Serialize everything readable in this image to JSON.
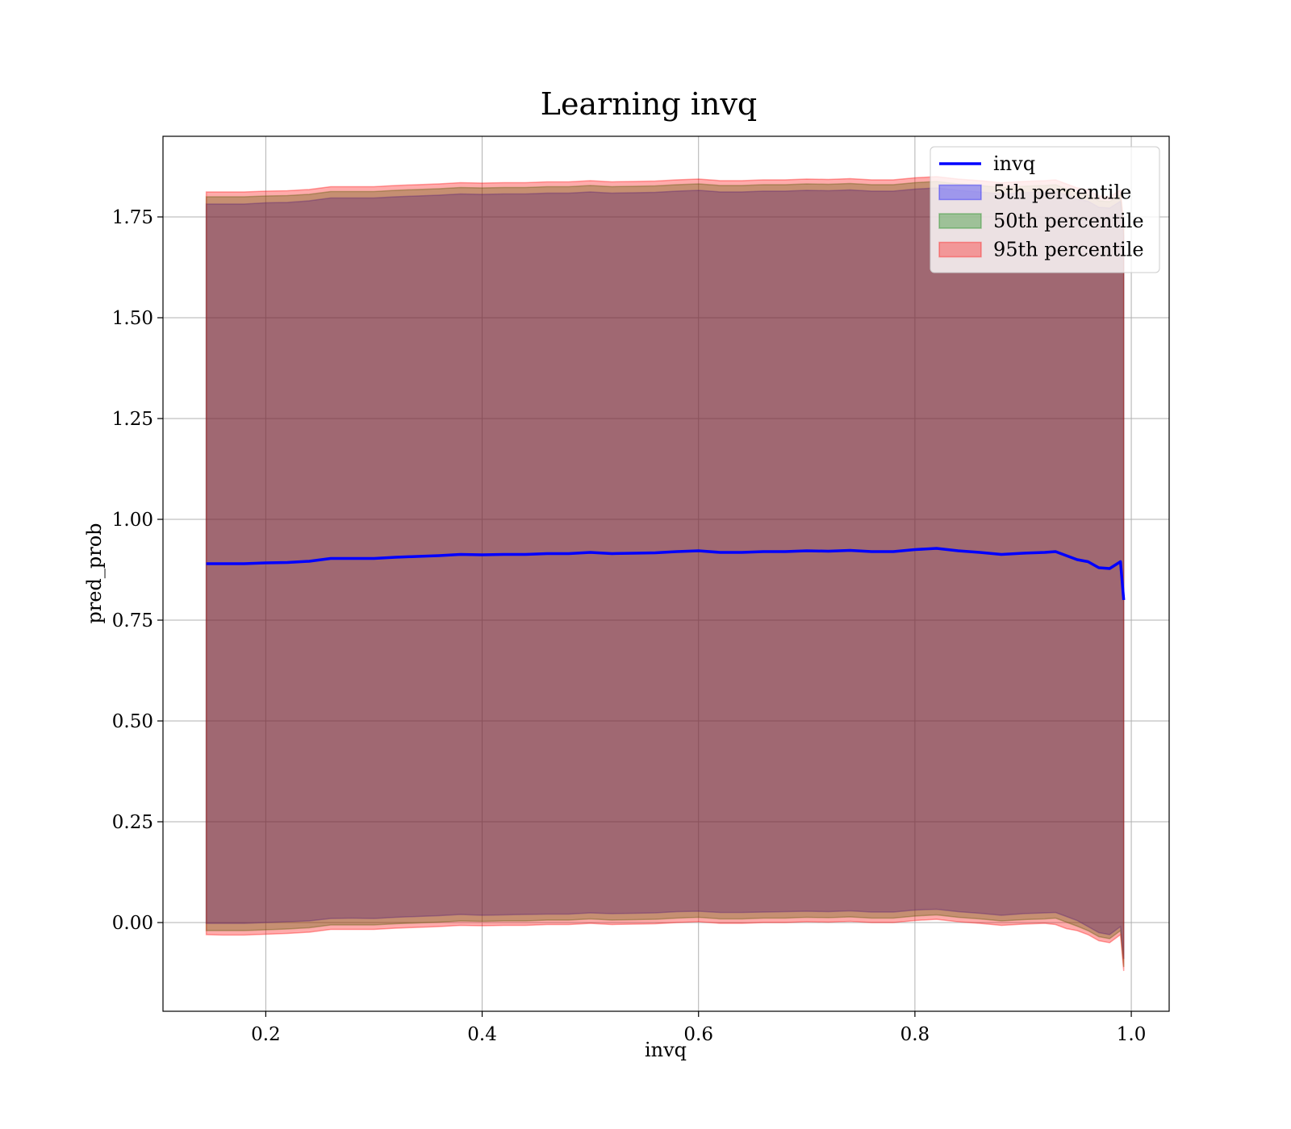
{
  "chart_data": {
    "type": "line",
    "title": "Learning invq",
    "xlabel": "invq",
    "ylabel": "pred_prob",
    "xlim": [
      0.105,
      1.035
    ],
    "ylim": [
      -0.22,
      1.95
    ],
    "xticks": [
      0.2,
      0.4,
      0.6,
      0.8,
      1.0
    ],
    "xtick_labels": [
      "0.2",
      "0.4",
      "0.6",
      "0.8",
      "1.0"
    ],
    "yticks": [
      0.0,
      0.25,
      0.5,
      0.75,
      1.0,
      1.25,
      1.5,
      1.75
    ],
    "ytick_labels": [
      "0.00",
      "0.25",
      "0.50",
      "0.75",
      "1.00",
      "1.25",
      "1.50",
      "1.75"
    ],
    "grid": true,
    "legend_position": "top-right",
    "x": [
      0.145,
      0.16,
      0.18,
      0.2,
      0.22,
      0.24,
      0.26,
      0.28,
      0.3,
      0.32,
      0.34,
      0.36,
      0.38,
      0.4,
      0.42,
      0.44,
      0.46,
      0.48,
      0.5,
      0.52,
      0.54,
      0.56,
      0.58,
      0.6,
      0.62,
      0.64,
      0.66,
      0.68,
      0.7,
      0.72,
      0.74,
      0.76,
      0.78,
      0.8,
      0.82,
      0.84,
      0.86,
      0.88,
      0.9,
      0.92,
      0.93,
      0.94,
      0.95,
      0.96,
      0.97,
      0.98,
      0.99,
      0.993
    ],
    "series": [
      {
        "name": "invq",
        "kind": "line",
        "color": "#0000ff",
        "values": [
          0.89,
          0.89,
          0.89,
          0.892,
          0.893,
          0.896,
          0.903,
          0.903,
          0.903,
          0.906,
          0.908,
          0.91,
          0.913,
          0.912,
          0.913,
          0.913,
          0.915,
          0.915,
          0.918,
          0.915,
          0.916,
          0.917,
          0.92,
          0.922,
          0.918,
          0.918,
          0.92,
          0.92,
          0.922,
          0.921,
          0.923,
          0.92,
          0.92,
          0.925,
          0.928,
          0.922,
          0.918,
          0.913,
          0.916,
          0.918,
          0.92,
          0.91,
          0.9,
          0.895,
          0.88,
          0.878,
          0.895,
          0.8
        ]
      },
      {
        "name": "5th percentile",
        "kind": "band",
        "color": "#0000ff",
        "lower": [
          -0.002,
          -0.002,
          -0.002,
          0.0,
          0.002,
          0.004,
          0.01,
          0.011,
          0.01,
          0.013,
          0.015,
          0.017,
          0.02,
          0.018,
          0.019,
          0.02,
          0.021,
          0.021,
          0.024,
          0.022,
          0.023,
          0.024,
          0.027,
          0.028,
          0.025,
          0.025,
          0.026,
          0.027,
          0.028,
          0.027,
          0.029,
          0.026,
          0.026,
          0.031,
          0.033,
          0.027,
          0.023,
          0.018,
          0.022,
          0.024,
          0.025,
          0.015,
          0.005,
          -0.01,
          -0.025,
          -0.03,
          -0.01,
          -0.09
        ],
        "upper": [
          1.782,
          1.782,
          1.782,
          1.785,
          1.786,
          1.79,
          1.797,
          1.797,
          1.797,
          1.8,
          1.802,
          1.804,
          1.807,
          1.806,
          1.807,
          1.807,
          1.809,
          1.809,
          1.812,
          1.809,
          1.81,
          1.811,
          1.814,
          1.816,
          1.812,
          1.812,
          1.814,
          1.814,
          1.816,
          1.815,
          1.817,
          1.814,
          1.814,
          1.819,
          1.822,
          1.816,
          1.812,
          1.807,
          1.81,
          1.812,
          1.814,
          1.804,
          1.794,
          1.789,
          1.774,
          1.772,
          1.789,
          1.704
        ]
      },
      {
        "name": "50th percentile",
        "kind": "band",
        "color": "#008000",
        "lower": [
          -0.02,
          -0.02,
          -0.02,
          -0.018,
          -0.016,
          -0.013,
          -0.006,
          -0.006,
          -0.006,
          -0.003,
          -0.001,
          0.001,
          0.004,
          0.003,
          0.004,
          0.004,
          0.006,
          0.006,
          0.009,
          0.006,
          0.007,
          0.008,
          0.011,
          0.013,
          0.009,
          0.009,
          0.011,
          0.011,
          0.013,
          0.012,
          0.014,
          0.011,
          0.011,
          0.016,
          0.019,
          0.013,
          0.009,
          0.004,
          0.007,
          0.009,
          0.011,
          0.001,
          -0.009,
          -0.02,
          -0.035,
          -0.04,
          -0.02,
          -0.11
        ],
        "upper": [
          1.8,
          1.8,
          1.8,
          1.802,
          1.803,
          1.806,
          1.813,
          1.813,
          1.813,
          1.816,
          1.818,
          1.82,
          1.823,
          1.822,
          1.823,
          1.823,
          1.825,
          1.825,
          1.828,
          1.825,
          1.826,
          1.827,
          1.83,
          1.832,
          1.828,
          1.828,
          1.83,
          1.83,
          1.832,
          1.831,
          1.833,
          1.83,
          1.83,
          1.835,
          1.838,
          1.832,
          1.828,
          1.823,
          1.826,
          1.828,
          1.83,
          1.82,
          1.81,
          1.805,
          1.79,
          1.788,
          1.805,
          1.72
        ]
      },
      {
        "name": "95th percentile",
        "kind": "band",
        "color": "#ff0000",
        "lower": [
          -0.03,
          -0.031,
          -0.031,
          -0.029,
          -0.027,
          -0.024,
          -0.017,
          -0.017,
          -0.017,
          -0.014,
          -0.012,
          -0.01,
          -0.007,
          -0.008,
          -0.007,
          -0.007,
          -0.005,
          -0.005,
          -0.002,
          -0.005,
          -0.004,
          -0.003,
          0.0,
          0.002,
          -0.002,
          -0.002,
          0.0,
          0.0,
          0.002,
          0.001,
          0.003,
          0.0,
          0.0,
          0.005,
          0.008,
          0.002,
          -0.002,
          -0.007,
          -0.004,
          -0.002,
          -0.005,
          -0.015,
          -0.02,
          -0.03,
          -0.045,
          -0.05,
          -0.03,
          -0.12
        ],
        "upper": [
          1.812,
          1.812,
          1.812,
          1.814,
          1.815,
          1.818,
          1.825,
          1.825,
          1.825,
          1.828,
          1.83,
          1.832,
          1.835,
          1.834,
          1.835,
          1.835,
          1.837,
          1.837,
          1.84,
          1.837,
          1.838,
          1.839,
          1.842,
          1.844,
          1.84,
          1.84,
          1.842,
          1.842,
          1.844,
          1.843,
          1.845,
          1.842,
          1.842,
          1.847,
          1.85,
          1.844,
          1.84,
          1.835,
          1.838,
          1.84,
          1.842,
          1.832,
          1.822,
          1.817,
          1.802,
          1.8,
          1.817,
          1.732
        ]
      }
    ]
  }
}
